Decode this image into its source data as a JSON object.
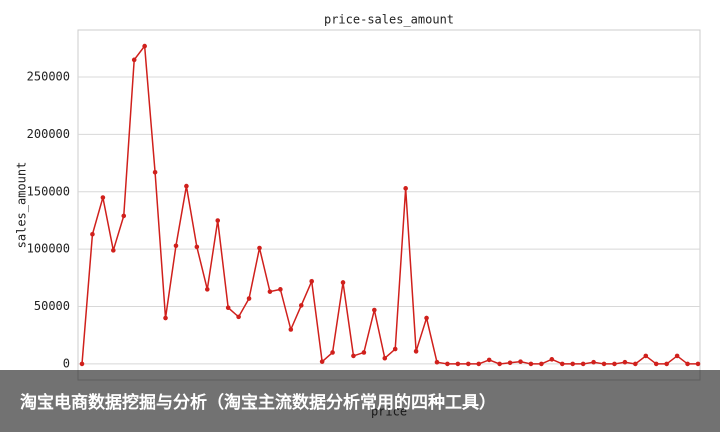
{
  "chart_data": {
    "type": "line",
    "title": "price-sales_amount",
    "y_label": "sales_amount",
    "x_label": "price",
    "categories": [
      null,
      null,
      null,
      null,
      null,
      null,
      null,
      null,
      null,
      null,
      null,
      null,
      null,
      null,
      null,
      null,
      null,
      null,
      null,
      null,
      null,
      null,
      null,
      null,
      null,
      null,
      null,
      null,
      null,
      null,
      null,
      null,
      null,
      null,
      null,
      null,
      null,
      null,
      null,
      null,
      null,
      null,
      null,
      null,
      null,
      null,
      null,
      null,
      null,
      null,
      null,
      null,
      null,
      null,
      null,
      null,
      null,
      null,
      null,
      null
    ],
    "series": [
      {
        "name": "sales_amount",
        "color": "#d0201c",
        "values": [
          0,
          113000,
          145000,
          99000,
          129000,
          265000,
          277000,
          167000,
          40000,
          103000,
          155000,
          102000,
          65000,
          125000,
          49000,
          41000,
          57000,
          101000,
          63000,
          65000,
          30000,
          51000,
          72000,
          2000,
          10000,
          71000,
          7000,
          10000,
          47000,
          5000,
          13000,
          153000,
          11000,
          40000,
          1500,
          0,
          0,
          0,
          0,
          3500,
          0,
          1000,
          2000,
          0,
          0,
          4000,
          0,
          0,
          0,
          1500,
          0,
          0,
          1500,
          0,
          7000,
          0,
          0,
          7000,
          0,
          0
        ]
      }
    ],
    "ylim": [
      -14000,
      291000
    ],
    "yticks": [
      0,
      50000,
      100000,
      150000,
      200000,
      250000
    ],
    "grid": true
  },
  "caption": {
    "text": "淘宝电商数据挖掘与分析（淘宝主流数据分析常用的四种工具）"
  }
}
